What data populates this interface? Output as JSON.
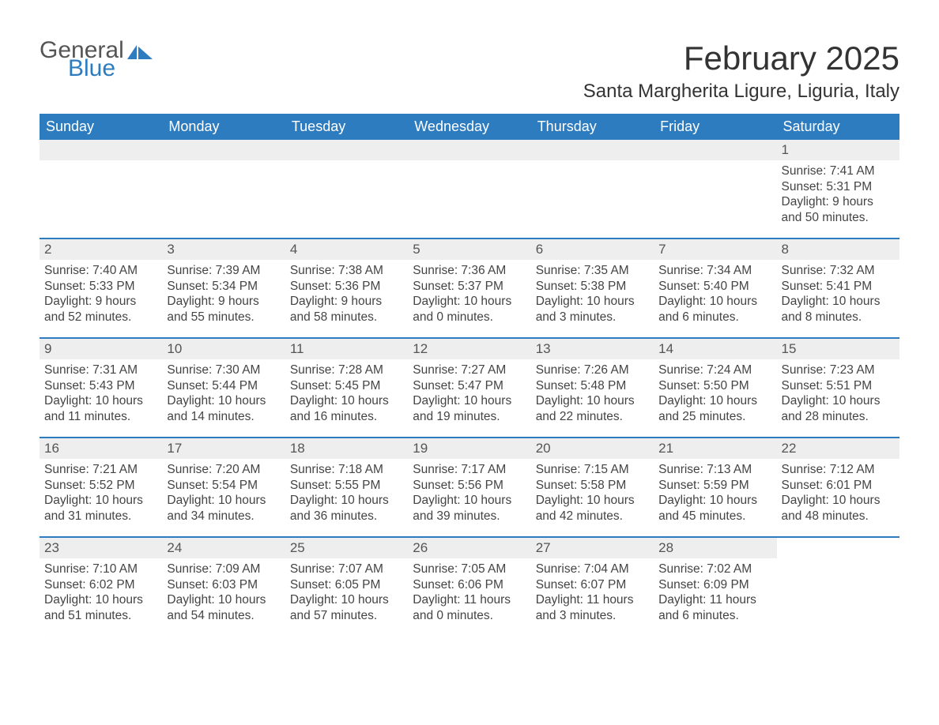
{
  "logo": {
    "word1": "General",
    "word2": "Blue"
  },
  "title": "February 2025",
  "subtitle": "Santa Margherita Ligure, Liguria, Italy",
  "colors": {
    "header_bg": "#2e7cc0",
    "header_fg": "#ffffff",
    "row_border": "#2e7cc0",
    "daynum_bg": "#eeeeee",
    "page_bg": "#ffffff",
    "text": "#333333"
  },
  "dow": [
    "Sunday",
    "Monday",
    "Tuesday",
    "Wednesday",
    "Thursday",
    "Friday",
    "Saturday"
  ],
  "weeks": [
    [
      null,
      null,
      null,
      null,
      null,
      null,
      {
        "n": "1",
        "sunrise": "Sunrise: 7:41 AM",
        "sunset": "Sunset: 5:31 PM",
        "day1": "Daylight: 9 hours",
        "day2": "and 50 minutes."
      }
    ],
    [
      {
        "n": "2",
        "sunrise": "Sunrise: 7:40 AM",
        "sunset": "Sunset: 5:33 PM",
        "day1": "Daylight: 9 hours",
        "day2": "and 52 minutes."
      },
      {
        "n": "3",
        "sunrise": "Sunrise: 7:39 AM",
        "sunset": "Sunset: 5:34 PM",
        "day1": "Daylight: 9 hours",
        "day2": "and 55 minutes."
      },
      {
        "n": "4",
        "sunrise": "Sunrise: 7:38 AM",
        "sunset": "Sunset: 5:36 PM",
        "day1": "Daylight: 9 hours",
        "day2": "and 58 minutes."
      },
      {
        "n": "5",
        "sunrise": "Sunrise: 7:36 AM",
        "sunset": "Sunset: 5:37 PM",
        "day1": "Daylight: 10 hours",
        "day2": "and 0 minutes."
      },
      {
        "n": "6",
        "sunrise": "Sunrise: 7:35 AM",
        "sunset": "Sunset: 5:38 PM",
        "day1": "Daylight: 10 hours",
        "day2": "and 3 minutes."
      },
      {
        "n": "7",
        "sunrise": "Sunrise: 7:34 AM",
        "sunset": "Sunset: 5:40 PM",
        "day1": "Daylight: 10 hours",
        "day2": "and 6 minutes."
      },
      {
        "n": "8",
        "sunrise": "Sunrise: 7:32 AM",
        "sunset": "Sunset: 5:41 PM",
        "day1": "Daylight: 10 hours",
        "day2": "and 8 minutes."
      }
    ],
    [
      {
        "n": "9",
        "sunrise": "Sunrise: 7:31 AM",
        "sunset": "Sunset: 5:43 PM",
        "day1": "Daylight: 10 hours",
        "day2": "and 11 minutes."
      },
      {
        "n": "10",
        "sunrise": "Sunrise: 7:30 AM",
        "sunset": "Sunset: 5:44 PM",
        "day1": "Daylight: 10 hours",
        "day2": "and 14 minutes."
      },
      {
        "n": "11",
        "sunrise": "Sunrise: 7:28 AM",
        "sunset": "Sunset: 5:45 PM",
        "day1": "Daylight: 10 hours",
        "day2": "and 16 minutes."
      },
      {
        "n": "12",
        "sunrise": "Sunrise: 7:27 AM",
        "sunset": "Sunset: 5:47 PM",
        "day1": "Daylight: 10 hours",
        "day2": "and 19 minutes."
      },
      {
        "n": "13",
        "sunrise": "Sunrise: 7:26 AM",
        "sunset": "Sunset: 5:48 PM",
        "day1": "Daylight: 10 hours",
        "day2": "and 22 minutes."
      },
      {
        "n": "14",
        "sunrise": "Sunrise: 7:24 AM",
        "sunset": "Sunset: 5:50 PM",
        "day1": "Daylight: 10 hours",
        "day2": "and 25 minutes."
      },
      {
        "n": "15",
        "sunrise": "Sunrise: 7:23 AM",
        "sunset": "Sunset: 5:51 PM",
        "day1": "Daylight: 10 hours",
        "day2": "and 28 minutes."
      }
    ],
    [
      {
        "n": "16",
        "sunrise": "Sunrise: 7:21 AM",
        "sunset": "Sunset: 5:52 PM",
        "day1": "Daylight: 10 hours",
        "day2": "and 31 minutes."
      },
      {
        "n": "17",
        "sunrise": "Sunrise: 7:20 AM",
        "sunset": "Sunset: 5:54 PM",
        "day1": "Daylight: 10 hours",
        "day2": "and 34 minutes."
      },
      {
        "n": "18",
        "sunrise": "Sunrise: 7:18 AM",
        "sunset": "Sunset: 5:55 PM",
        "day1": "Daylight: 10 hours",
        "day2": "and 36 minutes."
      },
      {
        "n": "19",
        "sunrise": "Sunrise: 7:17 AM",
        "sunset": "Sunset: 5:56 PM",
        "day1": "Daylight: 10 hours",
        "day2": "and 39 minutes."
      },
      {
        "n": "20",
        "sunrise": "Sunrise: 7:15 AM",
        "sunset": "Sunset: 5:58 PM",
        "day1": "Daylight: 10 hours",
        "day2": "and 42 minutes."
      },
      {
        "n": "21",
        "sunrise": "Sunrise: 7:13 AM",
        "sunset": "Sunset: 5:59 PM",
        "day1": "Daylight: 10 hours",
        "day2": "and 45 minutes."
      },
      {
        "n": "22",
        "sunrise": "Sunrise: 7:12 AM",
        "sunset": "Sunset: 6:01 PM",
        "day1": "Daylight: 10 hours",
        "day2": "and 48 minutes."
      }
    ],
    [
      {
        "n": "23",
        "sunrise": "Sunrise: 7:10 AM",
        "sunset": "Sunset: 6:02 PM",
        "day1": "Daylight: 10 hours",
        "day2": "and 51 minutes."
      },
      {
        "n": "24",
        "sunrise": "Sunrise: 7:09 AM",
        "sunset": "Sunset: 6:03 PM",
        "day1": "Daylight: 10 hours",
        "day2": "and 54 minutes."
      },
      {
        "n": "25",
        "sunrise": "Sunrise: 7:07 AM",
        "sunset": "Sunset: 6:05 PM",
        "day1": "Daylight: 10 hours",
        "day2": "and 57 minutes."
      },
      {
        "n": "26",
        "sunrise": "Sunrise: 7:05 AM",
        "sunset": "Sunset: 6:06 PM",
        "day1": "Daylight: 11 hours",
        "day2": "and 0 minutes."
      },
      {
        "n": "27",
        "sunrise": "Sunrise: 7:04 AM",
        "sunset": "Sunset: 6:07 PM",
        "day1": "Daylight: 11 hours",
        "day2": "and 3 minutes."
      },
      {
        "n": "28",
        "sunrise": "Sunrise: 7:02 AM",
        "sunset": "Sunset: 6:09 PM",
        "day1": "Daylight: 11 hours",
        "day2": "and 6 minutes."
      },
      null
    ]
  ]
}
